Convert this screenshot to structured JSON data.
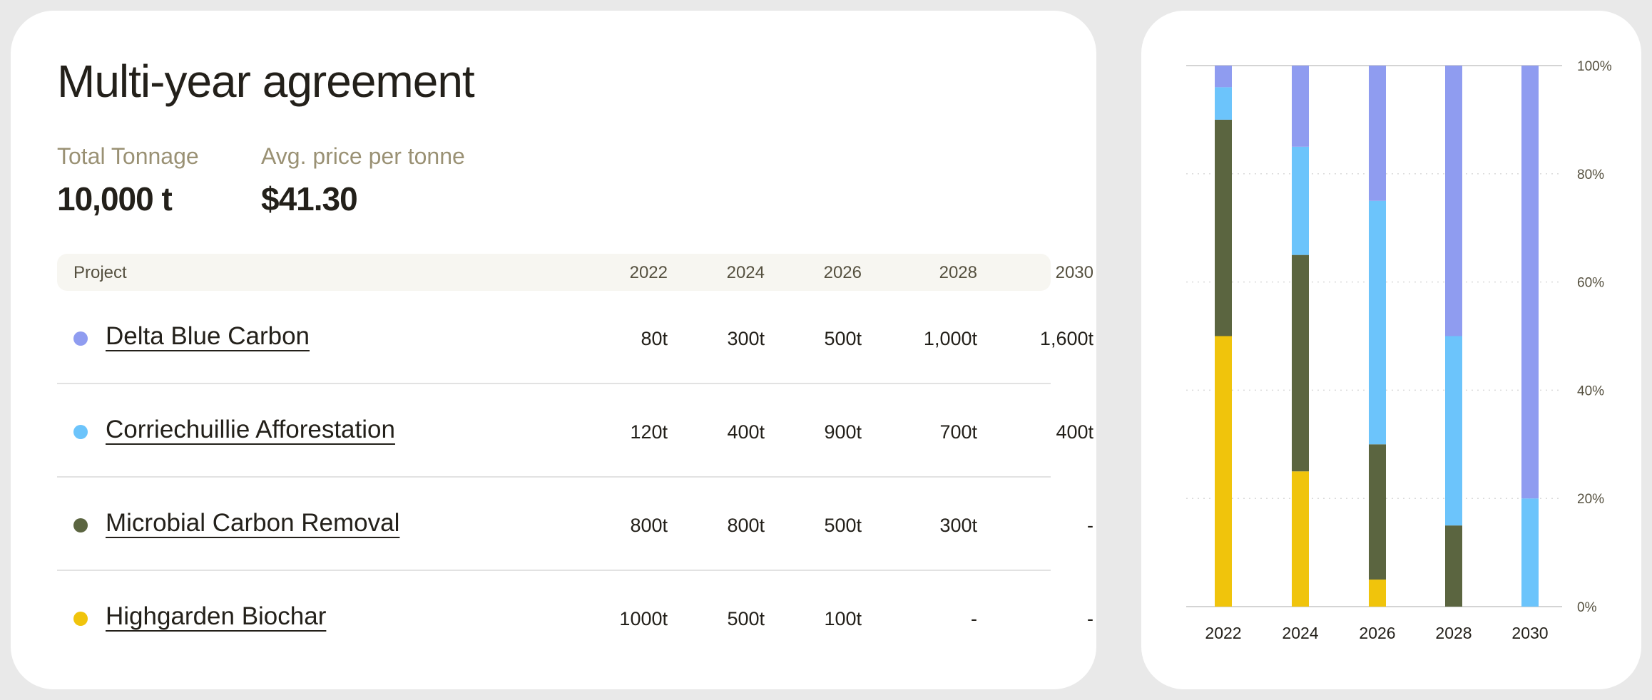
{
  "title": "Multi-year agreement",
  "stats": [
    {
      "label": "Total Tonnage",
      "value": "10,000 t"
    },
    {
      "label": "Avg. price per tonne",
      "value": "$41.30"
    }
  ],
  "table": {
    "headers": [
      "Project",
      "2022",
      "2024",
      "2026",
      "2028",
      "2030"
    ],
    "rows": [
      {
        "name": "Delta Blue Carbon",
        "color": "#8f9cf0",
        "values": [
          "80t",
          "300t",
          "500t",
          "1,000t",
          "1,600t"
        ]
      },
      {
        "name": "Corriechuillie Afforestation",
        "color": "#6cc4fb",
        "values": [
          "120t",
          "400t",
          "900t",
          "700t",
          "400t"
        ]
      },
      {
        "name": "Microbial Carbon Removal",
        "color": "#5b6540",
        "values": [
          "800t",
          "800t",
          "500t",
          "300t",
          "-"
        ]
      },
      {
        "name": "Highgarden Biochar",
        "color": "#f0c40c",
        "values": [
          "1000t",
          "500t",
          "100t",
          "-",
          "-"
        ]
      }
    ]
  },
  "chart_data": {
    "type": "bar",
    "stacked": true,
    "normalized": true,
    "categories": [
      "2022",
      "2024",
      "2026",
      "2028",
      "2030"
    ],
    "series": [
      {
        "name": "Highgarden Biochar",
        "color": "#f0c40c",
        "values": [
          1000,
          500,
          100,
          0,
          0
        ]
      },
      {
        "name": "Microbial Carbon Removal",
        "color": "#5b6540",
        "values": [
          800,
          800,
          500,
          300,
          0
        ]
      },
      {
        "name": "Corriechuillie Afforestation",
        "color": "#6cc4fb",
        "values": [
          120,
          400,
          900,
          700,
          400
        ]
      },
      {
        "name": "Delta Blue Carbon",
        "color": "#8f9cf0",
        "values": [
          80,
          300,
          500,
          1000,
          1600
        ]
      }
    ],
    "yticks": [
      "0%",
      "20%",
      "40%",
      "60%",
      "80%",
      "100%"
    ],
    "ylim": [
      0,
      100
    ],
    "grid": true
  }
}
